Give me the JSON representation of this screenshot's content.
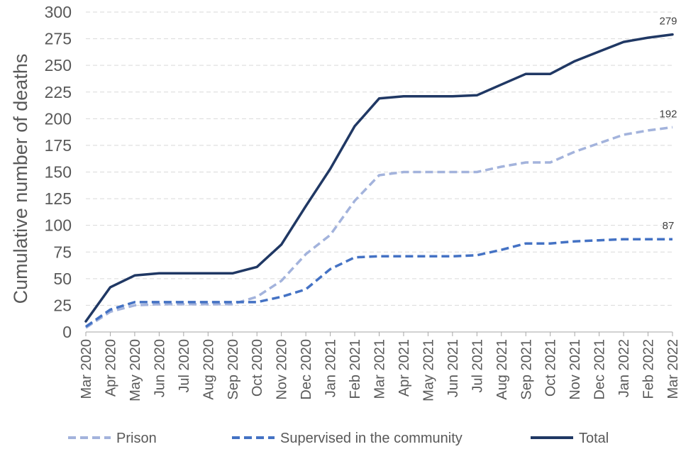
{
  "chart_data": {
    "type": "line",
    "ylabel": "Cumulative number of deaths",
    "ylim": [
      0,
      300
    ],
    "yticks": [
      0,
      25,
      50,
      75,
      100,
      125,
      150,
      175,
      200,
      225,
      250,
      275,
      300
    ],
    "grid": true,
    "legend": "bottom",
    "x": [
      "Mar 2020",
      "Apr 2020",
      "May 2020",
      "Jun 2020",
      "Jul 2020",
      "Aug 2020",
      "Sep 2020",
      "Oct 2020",
      "Nov 2020",
      "Dec 2020",
      "Jan 2021",
      "Feb 2021",
      "Mar 2021",
      "Apr 2021",
      "May 2021",
      "Jun 2021",
      "Jul 2021",
      "Aug 2021",
      "Sep 2021",
      "Oct 2021",
      "Nov 2021",
      "Dec 2021",
      "Jan 2022",
      "Feb 2022",
      "Mar 2022"
    ],
    "series": [
      {
        "name": "Prison",
        "color": "#a3b3dc",
        "style": "dashed",
        "values": [
          4,
          19,
          25,
          26,
          26,
          26,
          26,
          33,
          48,
          73,
          91,
          123,
          147,
          150,
          150,
          150,
          150,
          155,
          159,
          159,
          169,
          177,
          185,
          189,
          192
        ],
        "end_label": "192"
      },
      {
        "name": "Supervised in the community",
        "color": "#4472c4",
        "style": "dashed",
        "values": [
          5,
          21,
          28,
          28,
          28,
          28,
          28,
          28,
          33,
          40,
          59,
          70,
          71,
          71,
          71,
          71,
          72,
          77,
          83,
          83,
          85,
          86,
          87,
          87,
          87
        ],
        "end_label": "87"
      },
      {
        "name": "Total",
        "color": "#203864",
        "style": "solid",
        "values": [
          10,
          42,
          53,
          55,
          55,
          55,
          55,
          61,
          82,
          118,
          153,
          193,
          219,
          221,
          221,
          221,
          222,
          232,
          242,
          242,
          254,
          263,
          272,
          276,
          279
        ],
        "end_label": "279"
      }
    ]
  }
}
